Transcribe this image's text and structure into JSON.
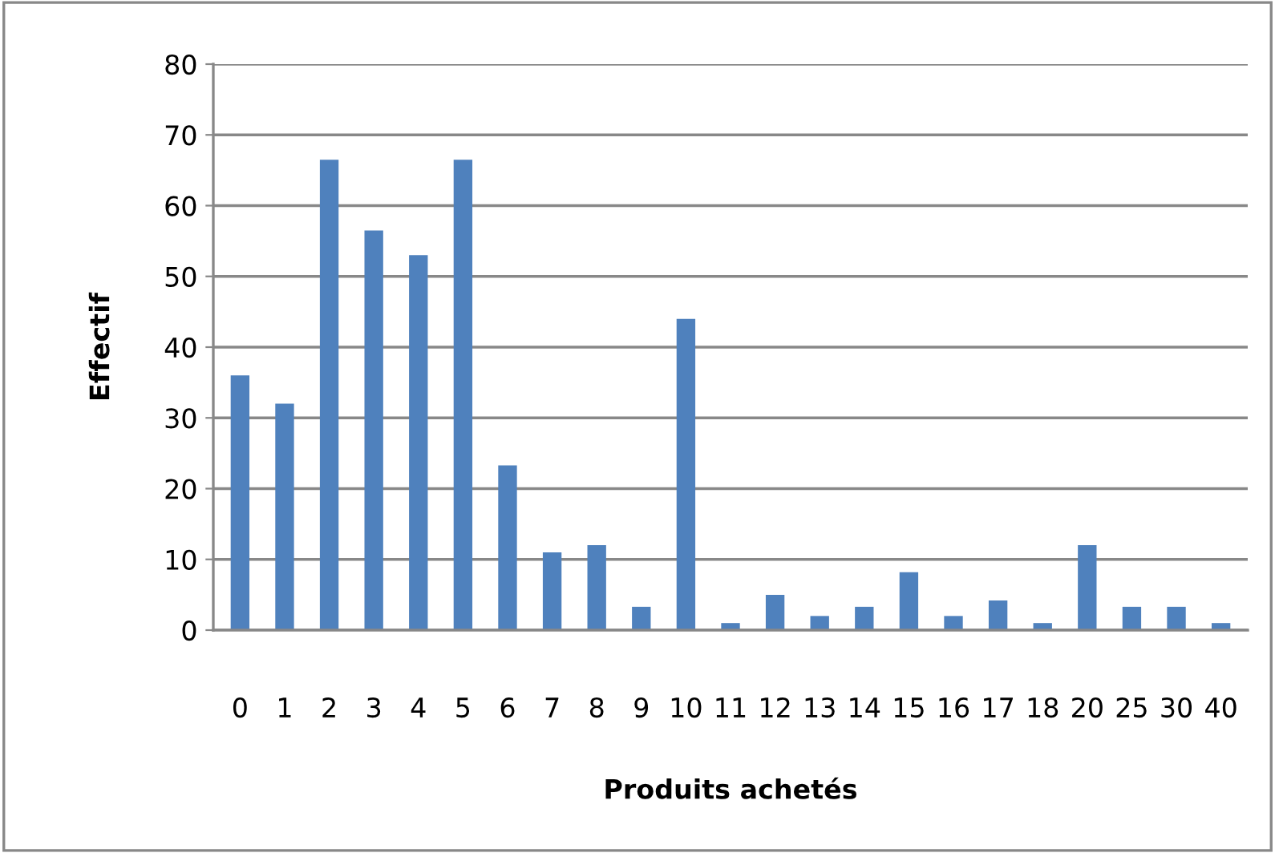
{
  "chart_data": {
    "type": "bar",
    "xlabel": "Produits achetés",
    "ylabel": "Effectif",
    "categories": [
      "0",
      "1",
      "2",
      "3",
      "4",
      "5",
      "6",
      "7",
      "8",
      "9",
      "10",
      "11",
      "12",
      "13",
      "14",
      "15",
      "16",
      "17",
      "18",
      "20",
      "25",
      "30",
      "40"
    ],
    "values": [
      36,
      32,
      66.5,
      56.5,
      53,
      66.5,
      23.3,
      11,
      12,
      3.3,
      44,
      1,
      5,
      2,
      3.3,
      8.2,
      2,
      4.2,
      1,
      12,
      3.3,
      3.3,
      1
    ],
    "color": "#4f81bd",
    "ylim": [
      0,
      80
    ],
    "yticks": [
      0,
      10,
      20,
      30,
      40,
      50,
      60,
      70,
      80
    ],
    "grid": "y"
  }
}
